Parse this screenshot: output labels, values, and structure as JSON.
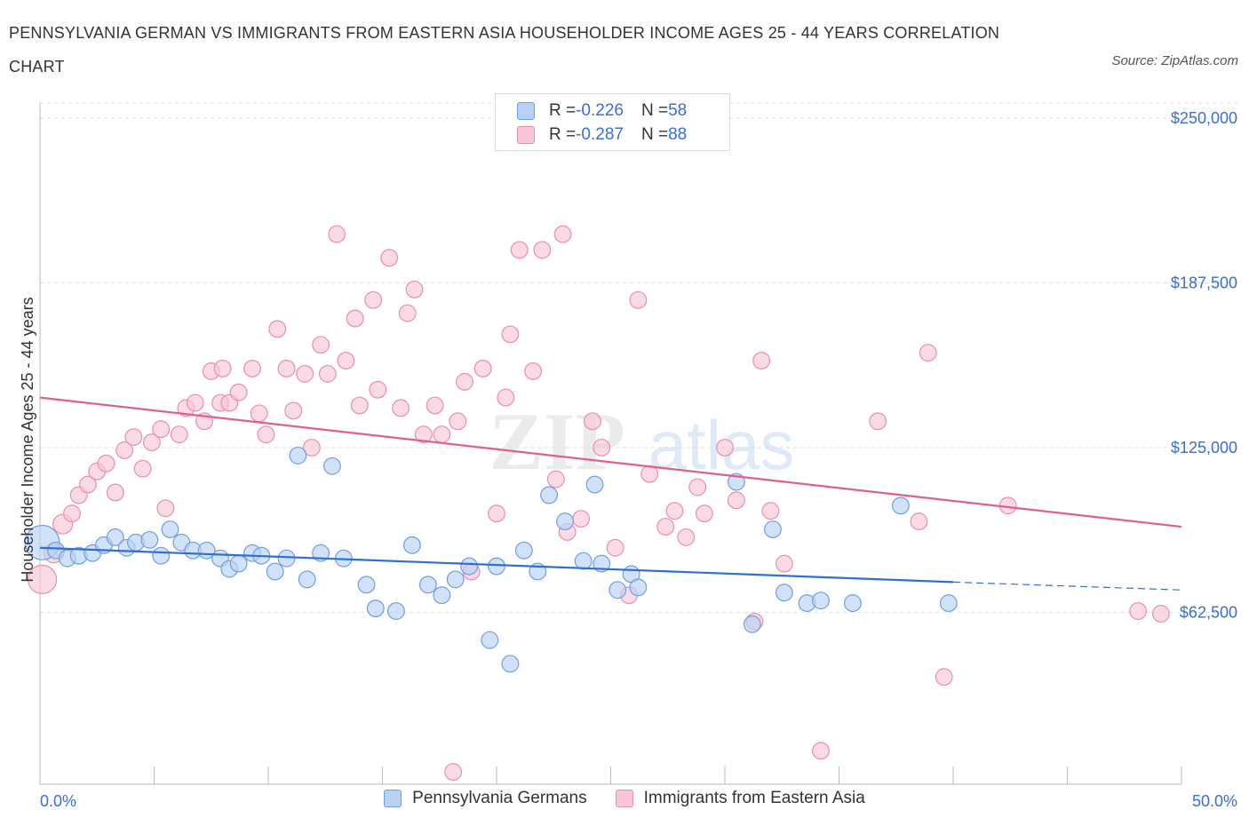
{
  "title": "PENNSYLVANIA GERMAN VS IMMIGRANTS FROM EASTERN ASIA HOUSEHOLDER INCOME AGES 25 - 44 YEARS CORRELATION CHART",
  "source": "Source: ZipAtlas.com",
  "watermark": {
    "zip": "ZIP",
    "atlas": "atlas"
  },
  "legend_top": [
    {
      "r_label": "R = ",
      "r_value": "-0.226",
      "n_label": "N = ",
      "n_value": "58"
    },
    {
      "r_label": "R = ",
      "r_value": "-0.287",
      "n_label": "N = ",
      "n_value": "88"
    }
  ],
  "colors": {
    "blue_fill": "#b8d2f5",
    "blue_stroke": "#6f9fe0",
    "blue_line": "#2f6fd0",
    "pink_fill": "#f8c6d4",
    "pink_stroke": "#ea8fab",
    "pink_line": "#e0608a",
    "axis_text": "#3a6fd0",
    "grid": "#dddddd"
  },
  "chart_data": {
    "type": "scatter",
    "title": "PENNSYLVANIA GERMAN VS IMMIGRANTS FROM EASTERN ASIA HOUSEHOLDER INCOME AGES 25 - 44 YEARS CORRELATION CHART",
    "xlabel": "",
    "ylabel": "Householder Income Ages 25 - 44 years",
    "xlim": [
      0,
      50
    ],
    "ylim": [
      0,
      250000
    ],
    "x_tick_labels": [
      "0.0%",
      "50.0%"
    ],
    "y_ticks": [
      62500,
      125000,
      187500,
      250000
    ],
    "y_tick_labels": [
      "$62,500",
      "$125,000",
      "$187,500",
      "$250,000"
    ],
    "grid": true,
    "legend_position": "bottom",
    "series": [
      {
        "name": "Pennsylvania Germans",
        "color": "blue",
        "points": [
          [
            0.1,
            89000,
            22
          ],
          [
            0.7,
            86000,
            10
          ],
          [
            1.2,
            83000,
            10
          ],
          [
            1.7,
            84000,
            10
          ],
          [
            2.3,
            85000,
            10
          ],
          [
            2.8,
            88000,
            10
          ],
          [
            3.3,
            91000,
            10
          ],
          [
            3.8,
            87000,
            10
          ],
          [
            4.2,
            89000,
            10
          ],
          [
            4.8,
            90000,
            10
          ],
          [
            5.3,
            84000,
            10
          ],
          [
            5.7,
            94000,
            10
          ],
          [
            6.2,
            89000,
            10
          ],
          [
            6.7,
            86000,
            10
          ],
          [
            7.3,
            86000,
            10
          ],
          [
            7.9,
            83000,
            10
          ],
          [
            8.3,
            79000,
            10
          ],
          [
            8.7,
            81000,
            10
          ],
          [
            9.3,
            85000,
            10
          ],
          [
            9.7,
            84000,
            10
          ],
          [
            10.3,
            78000,
            10
          ],
          [
            10.8,
            83000,
            10
          ],
          [
            11.3,
            122000,
            10
          ],
          [
            11.7,
            75000,
            10
          ],
          [
            12.3,
            85000,
            10
          ],
          [
            12.8,
            118000,
            10
          ],
          [
            13.3,
            83000,
            10
          ],
          [
            14.3,
            73000,
            10
          ],
          [
            14.7,
            64000,
            10
          ],
          [
            15.6,
            63000,
            10
          ],
          [
            16.3,
            88000,
            10
          ],
          [
            17.0,
            73000,
            10
          ],
          [
            17.6,
            69000,
            10
          ],
          [
            18.2,
            75000,
            10
          ],
          [
            18.8,
            80000,
            10
          ],
          [
            19.7,
            52000,
            10
          ],
          [
            20.0,
            80000,
            10
          ],
          [
            20.6,
            43000,
            10
          ],
          [
            21.2,
            86000,
            10
          ],
          [
            21.8,
            78000,
            10
          ],
          [
            22.3,
            107000,
            10
          ],
          [
            23.0,
            97000,
            10
          ],
          [
            23.8,
            82000,
            10
          ],
          [
            24.3,
            111000,
            10
          ],
          [
            24.6,
            81000,
            10
          ],
          [
            25.3,
            71000,
            10
          ],
          [
            25.9,
            77000,
            10
          ],
          [
            26.2,
            72000,
            10
          ],
          [
            30.5,
            112000,
            10
          ],
          [
            31.2,
            58000,
            10
          ],
          [
            32.1,
            94000,
            10
          ],
          [
            32.6,
            70000,
            10
          ],
          [
            33.6,
            66000,
            10
          ],
          [
            34.2,
            67000,
            10
          ],
          [
            35.6,
            66000,
            10
          ],
          [
            37.7,
            103000,
            10
          ],
          [
            39.8,
            66000,
            10
          ]
        ]
      },
      {
        "name": "Immigrants from Eastern Asia",
        "color": "pink",
        "points": [
          [
            0.1,
            75000,
            18
          ],
          [
            0.6,
            85000,
            12
          ],
          [
            1.0,
            96000,
            12
          ],
          [
            1.4,
            100000,
            10
          ],
          [
            1.7,
            107000,
            10
          ],
          [
            2.1,
            111000,
            10
          ],
          [
            2.5,
            116000,
            10
          ],
          [
            2.9,
            119000,
            10
          ],
          [
            3.3,
            108000,
            10
          ],
          [
            3.7,
            124000,
            10
          ],
          [
            4.1,
            129000,
            10
          ],
          [
            4.5,
            117000,
            10
          ],
          [
            4.9,
            127000,
            10
          ],
          [
            5.3,
            132000,
            10
          ],
          [
            5.5,
            102000,
            10
          ],
          [
            6.1,
            130000,
            10
          ],
          [
            6.4,
            140000,
            10
          ],
          [
            6.8,
            142000,
            10
          ],
          [
            7.2,
            135000,
            10
          ],
          [
            7.5,
            154000,
            10
          ],
          [
            7.9,
            142000,
            10
          ],
          [
            8.3,
            142000,
            10
          ],
          [
            8.7,
            146000,
            10
          ],
          [
            9.3,
            155000,
            10
          ],
          [
            9.6,
            138000,
            10
          ],
          [
            9.9,
            130000,
            10
          ],
          [
            10.4,
            170000,
            10
          ],
          [
            10.8,
            155000,
            10
          ],
          [
            11.1,
            139000,
            10
          ],
          [
            11.6,
            153000,
            10
          ],
          [
            11.9,
            125000,
            10
          ],
          [
            12.3,
            164000,
            10
          ],
          [
            12.6,
            153000,
            10
          ],
          [
            13.0,
            206000,
            10
          ],
          [
            13.4,
            158000,
            10
          ],
          [
            13.8,
            174000,
            10
          ],
          [
            14.0,
            141000,
            10
          ],
          [
            14.6,
            181000,
            10
          ],
          [
            14.8,
            147000,
            10
          ],
          [
            15.3,
            197000,
            10
          ],
          [
            15.8,
            140000,
            10
          ],
          [
            16.1,
            176000,
            10
          ],
          [
            16.4,
            185000,
            10
          ],
          [
            16.8,
            130000,
            10
          ],
          [
            17.3,
            141000,
            10
          ],
          [
            17.6,
            130000,
            10
          ],
          [
            18.3,
            135000,
            10
          ],
          [
            18.6,
            150000,
            10
          ],
          [
            18.9,
            78000,
            10
          ],
          [
            19.4,
            155000,
            10
          ],
          [
            20.0,
            100000,
            10
          ],
          [
            20.4,
            144000,
            10
          ],
          [
            20.6,
            168000,
            10
          ],
          [
            21.0,
            200000,
            10
          ],
          [
            21.6,
            154000,
            10
          ],
          [
            22.0,
            200000,
            10
          ],
          [
            22.6,
            113000,
            10
          ],
          [
            22.9,
            206000,
            10
          ],
          [
            23.1,
            93000,
            10
          ],
          [
            23.7,
            98000,
            10
          ],
          [
            24.2,
            135000,
            10
          ],
          [
            24.6,
            125000,
            10
          ],
          [
            25.2,
            87000,
            10
          ],
          [
            25.8,
            69000,
            10
          ],
          [
            26.2,
            181000,
            10
          ],
          [
            26.7,
            115000,
            10
          ],
          [
            27.4,
            95000,
            10
          ],
          [
            27.8,
            101000,
            10
          ],
          [
            28.3,
            91000,
            10
          ],
          [
            28.8,
            110000,
            10
          ],
          [
            29.1,
            100000,
            10
          ],
          [
            30.0,
            125000,
            10
          ],
          [
            30.5,
            105000,
            10
          ],
          [
            31.3,
            59000,
            10
          ],
          [
            31.6,
            158000,
            10
          ],
          [
            32.0,
            101000,
            10
          ],
          [
            32.6,
            81000,
            10
          ],
          [
            34.2,
            10000,
            10
          ],
          [
            36.7,
            135000,
            10
          ],
          [
            38.5,
            97000,
            10
          ],
          [
            38.9,
            161000,
            10
          ],
          [
            39.6,
            38000,
            10
          ],
          [
            42.4,
            103000,
            10
          ],
          [
            48.1,
            63000,
            10
          ],
          [
            49.1,
            62000,
            10
          ],
          [
            18.1,
            2000,
            10
          ],
          [
            8.0,
            155000,
            10
          ]
        ]
      }
    ],
    "trend_lines": [
      {
        "series": "Pennsylvania Germans",
        "x": [
          0,
          40
        ],
        "y": [
          87000,
          74000
        ],
        "dashed_extension_to_x": 50,
        "dashed_extension_y": 71000
      },
      {
        "series": "Immigrants from Eastern Asia",
        "x": [
          0,
          50
        ],
        "y": [
          144000,
          95000
        ]
      }
    ]
  },
  "bottom_legend": [
    {
      "label": "Pennsylvania Germans"
    },
    {
      "label": "Immigrants from Eastern Asia"
    }
  ]
}
